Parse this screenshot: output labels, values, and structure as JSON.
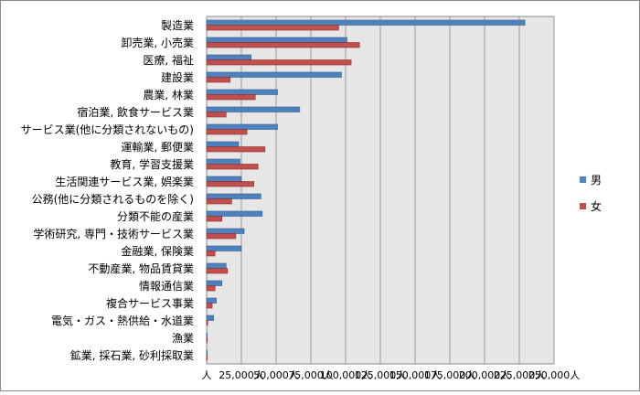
{
  "chart_data": {
    "type": "bar",
    "orientation": "horizontal",
    "categories": [
      "製造業",
      "卸売業, 小売業",
      "医療, 福祉",
      "建設業",
      "農業, 林業",
      "宿泊業, 飲食サービス業",
      "サービス業(他に分類されないもの)",
      "運輸業, 郵便業",
      "教育, 学習支援業",
      "生活関連サービス業, 娯楽業",
      "公務(他に分類されるものを除く)",
      "分類不能の産業",
      "学術研究, 専門・技術サービス業",
      "金融業, 保険業",
      "不動産業, 物品賃貸業",
      "情報通信業",
      "複合サービス事業",
      "電気・ガス・熱供給・水道業",
      "漁業",
      "鉱業, 採石業, 砂利採取業"
    ],
    "series": [
      {
        "name": "男",
        "color": "#4f81bd",
        "values": [
          229000,
          101000,
          32000,
          97000,
          51000,
          67000,
          51000,
          23000,
          24000,
          25000,
          39000,
          40000,
          27000,
          25000,
          14000,
          11000,
          7000,
          5000,
          400,
          300
        ]
      },
      {
        "name": "女",
        "color": "#c0504d",
        "values": [
          95000,
          110000,
          104000,
          17000,
          35000,
          14000,
          29000,
          42000,
          37000,
          34000,
          18000,
          11000,
          21000,
          6000,
          15000,
          6000,
          4000,
          700,
          200,
          200
        ]
      }
    ],
    "x_ticks": [
      "人",
      "25,000人",
      "50,000人",
      "75,000人",
      "100,000人",
      "125,000人",
      "150,000人",
      "175,000人",
      "200,000人",
      "225,000人",
      "250,000人"
    ],
    "xlim": [
      0,
      250000
    ],
    "grid": true,
    "legend": "right"
  }
}
